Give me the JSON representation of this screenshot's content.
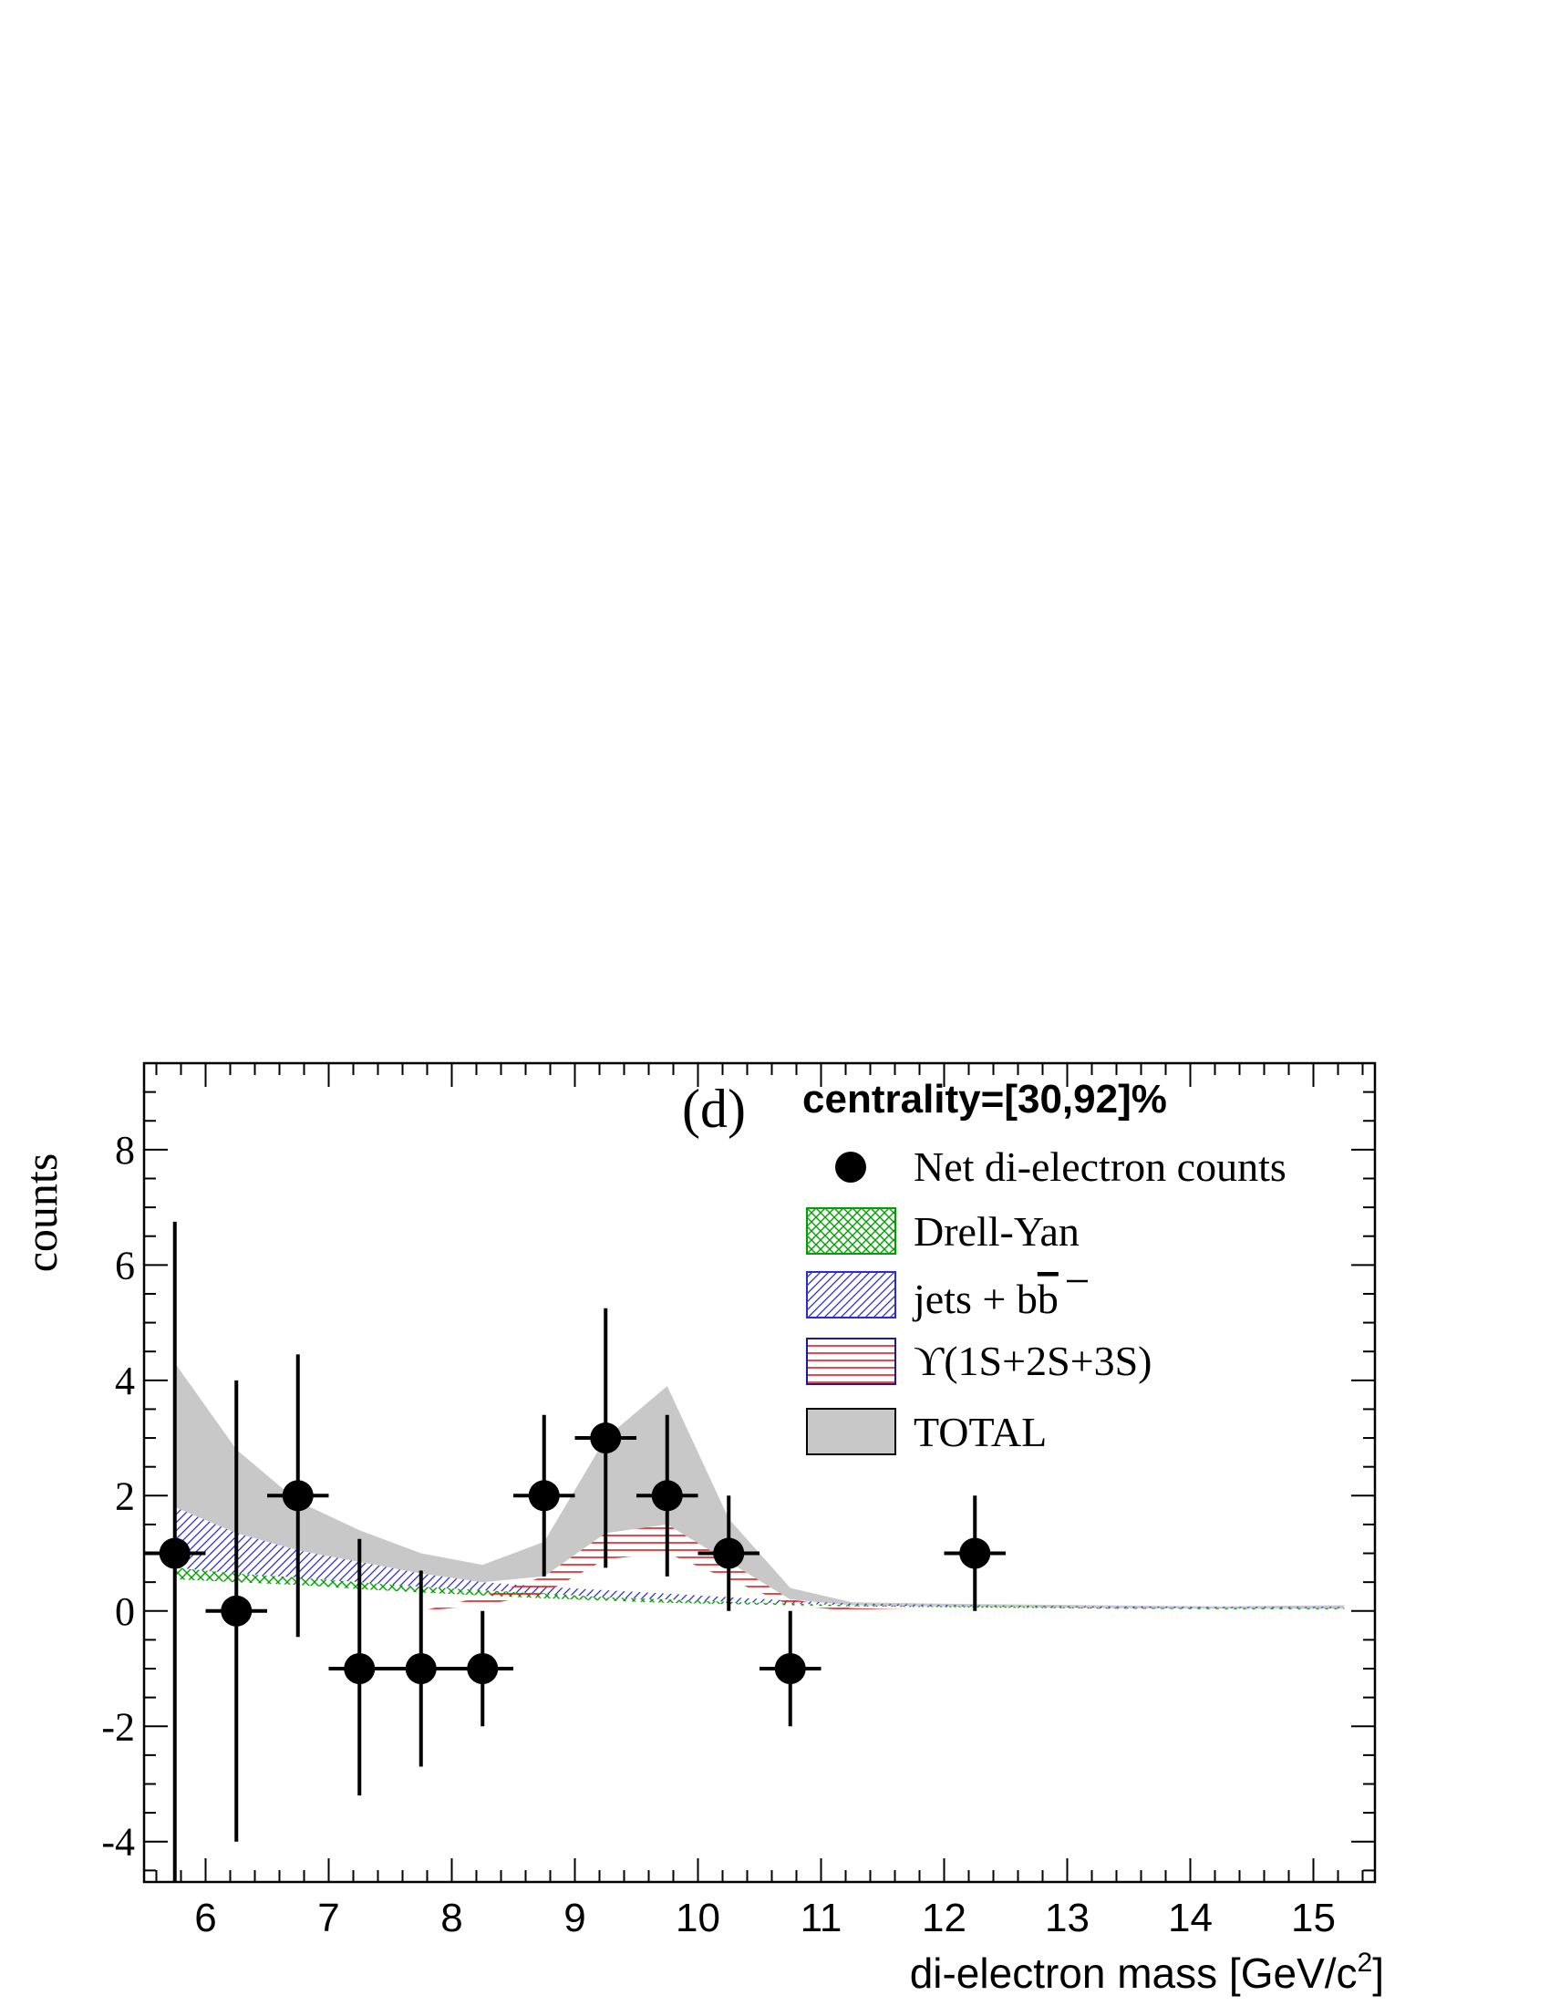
{
  "chart_data": {
    "type": "scatter",
    "panel_label": "(d)",
    "title": "centrality=[30,92]%",
    "xlabel": "di-electron mass [GeV/c",
    "xlabel_sup": "2",
    "xlabel_end": "]",
    "ylabel": "counts",
    "xlim": [
      5.5,
      15.5
    ],
    "ylim": [
      -4.7,
      9.5
    ],
    "x_ticks": [
      6,
      7,
      8,
      9,
      10,
      11,
      12,
      13,
      14,
      15
    ],
    "y_ticks": [
      -4,
      -2,
      0,
      2,
      4,
      6,
      8
    ],
    "x_tick_labels": [
      "6",
      "7",
      "8",
      "9",
      "10",
      "11",
      "12",
      "13",
      "14",
      "15"
    ],
    "y_tick_labels": [
      "-4",
      "-2",
      "0",
      "2",
      "4",
      "6",
      "8"
    ],
    "grid": false,
    "legend_position": "top-right",
    "legend": {
      "points": "Net di-electron counts",
      "drell_yan": "Drell-Yan",
      "jets_prefix": "jets + b",
      "jets_bbar": "b",
      "upsilon": "ϒ(1S+2S+3S)",
      "total": "TOTAL"
    },
    "points": [
      {
        "x": 5.75,
        "y": 1,
        "xerr": 0.25,
        "yerr": [
          5.7,
          5.75
        ]
      },
      {
        "x": 6.25,
        "y": 0,
        "xerr": 0.25,
        "yerr": [
          4.0,
          4.0
        ]
      },
      {
        "x": 6.75,
        "y": 2,
        "xerr": 0.25,
        "yerr": [
          2.45,
          2.45
        ]
      },
      {
        "x": 7.25,
        "y": -1,
        "xerr": 0.25,
        "yerr": [
          2.2,
          2.25
        ]
      },
      {
        "x": 7.75,
        "y": -1,
        "xerr": 0.25,
        "yerr": [
          1.7,
          1.7
        ]
      },
      {
        "x": 8.25,
        "y": -1,
        "xerr": 0.25,
        "yerr": [
          1.0,
          1.0
        ]
      },
      {
        "x": 8.75,
        "y": 2,
        "xerr": 0.25,
        "yerr": [
          1.4,
          1.4
        ]
      },
      {
        "x": 9.25,
        "y": 3,
        "xerr": 0.25,
        "yerr": [
          2.25,
          2.25
        ]
      },
      {
        "x": 9.75,
        "y": 2,
        "xerr": 0.25,
        "yerr": [
          1.4,
          1.4
        ]
      },
      {
        "x": 10.25,
        "y": 1,
        "xerr": 0.25,
        "yerr": [
          1.0,
          1.0
        ]
      },
      {
        "x": 10.75,
        "y": -1,
        "xerr": 0.25,
        "yerr": [
          1.0,
          1.0
        ]
      },
      {
        "x": 12.25,
        "y": 1,
        "xerr": 0.25,
        "yerr": [
          1.0,
          1.0
        ]
      }
    ],
    "bands": {
      "x": [
        5.75,
        6.25,
        6.75,
        7.25,
        7.75,
        8.25,
        8.75,
        9.25,
        9.75,
        10.25,
        10.75,
        11.25,
        12.25,
        13.25,
        14.25,
        15.25
      ],
      "drell_yan": {
        "lower": [
          0.55,
          0.5,
          0.45,
          0.38,
          0.32,
          0.27,
          0.22,
          0.18,
          0.14,
          0.12,
          0.1,
          0.08,
          0.06,
          0.04,
          0.03,
          0.03
        ],
        "upper": [
          0.75,
          0.65,
          0.58,
          0.5,
          0.42,
          0.36,
          0.3,
          0.24,
          0.2,
          0.16,
          0.13,
          0.1,
          0.08,
          0.06,
          0.05,
          0.05
        ]
      },
      "jets_bb": {
        "lower": [
          0.75,
          0.65,
          0.58,
          0.5,
          0.42,
          0.36,
          0.3,
          0.24,
          0.2,
          0.16,
          0.13,
          0.1,
          0.08,
          0.06,
          0.05,
          0.05
        ],
        "upper": [
          1.8,
          1.35,
          1.05,
          0.85,
          0.65,
          0.5,
          0.42,
          0.36,
          0.3,
          0.24,
          0.18,
          0.13,
          0.1,
          0.08,
          0.07,
          0.07
        ]
      },
      "upsilon": {
        "lower": [
          0,
          0,
          0,
          0,
          0,
          0.1,
          0.3,
          0.9,
          1.0,
          0.55,
          0.1,
          0.0,
          0,
          0,
          0,
          0
        ],
        "upper": [
          0,
          0,
          0,
          0,
          0,
          0.25,
          0.6,
          1.35,
          1.5,
          0.85,
          0.2,
          0.05,
          0,
          0,
          0,
          0
        ]
      },
      "total": {
        "lower": [
          1.8,
          1.35,
          1.05,
          0.85,
          0.65,
          0.5,
          0.6,
          1.35,
          1.5,
          0.85,
          0.2,
          0.1,
          0.07,
          0.05,
          0.04,
          0.04
        ],
        "upper": [
          4.3,
          2.8,
          1.9,
          1.4,
          1.0,
          0.8,
          1.2,
          3.0,
          3.9,
          1.6,
          0.4,
          0.15,
          0.12,
          0.1,
          0.08,
          0.1
        ]
      }
    },
    "colors": {
      "points": "#000000",
      "drell_yan": "#00a000",
      "jets_bb": "#2b2bd8",
      "upsilon": "#e41a1c",
      "upsilon_border": "#1a1aa0",
      "total": "#c8c8c8"
    }
  }
}
